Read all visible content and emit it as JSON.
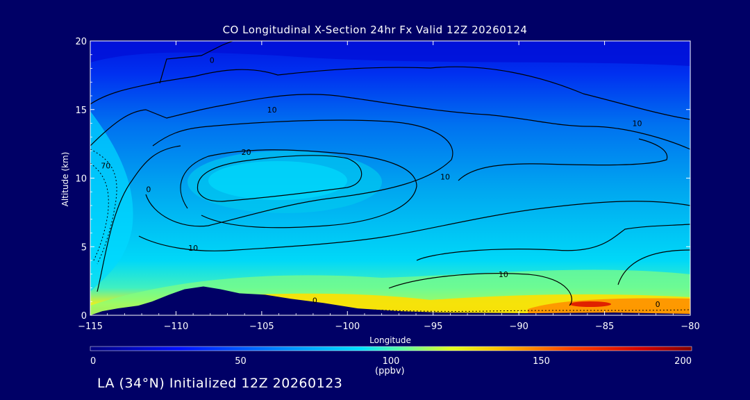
{
  "chart_data": {
    "type": "heatmap",
    "title": "CO Longitudinal X-Section 24hr  Fx Valid 12Z 20260124",
    "xlabel": "Longitude",
    "ylabel": "Altitude (km)",
    "xlim": [
      -115,
      -80
    ],
    "ylim": [
      0,
      20
    ],
    "x_ticks": [
      -115,
      -110,
      -105,
      -100,
      -95,
      -90,
      -85,
      -80
    ],
    "x_tick_labels": [
      "−115",
      "−110",
      "−105",
      "−100",
      "−95",
      "−90",
      "−85",
      "−80"
    ],
    "y_ticks": [
      0,
      5,
      10,
      15,
      20
    ],
    "y_tick_labels": [
      "0",
      "5",
      "10",
      "15",
      "20"
    ],
    "colorbar": {
      "label": "(ppbv)",
      "range": [
        0,
        200
      ],
      "ticks": [
        0,
        50,
        100,
        150,
        200
      ],
      "tick_labels": [
        "0",
        "50",
        "100",
        "150",
        "200"
      ]
    },
    "contour_labels": [
      {
        "text": "0",
        "lon": -107.9,
        "alt": 18.6
      },
      {
        "text": "10",
        "lon": -104.4,
        "alt": 15.0
      },
      {
        "text": "20",
        "lon": -105.9,
        "alt": 11.9
      },
      {
        "text": "70",
        "lon": -114.1,
        "alt": 10.9
      },
      {
        "text": "0",
        "lon": -111.6,
        "alt": 9.2
      },
      {
        "text": "10",
        "lon": -94.3,
        "alt": 10.1
      },
      {
        "text": "10",
        "lon": -83.1,
        "alt": 14.0
      },
      {
        "text": "10",
        "lon": -109.0,
        "alt": 4.9
      },
      {
        "text": "10",
        "lon": -90.9,
        "alt": 3.0
      },
      {
        "text": "0",
        "lon": -101.9,
        "alt": 1.1
      },
      {
        "text": "0",
        "lon": -81.9,
        "alt": 0.8
      }
    ],
    "terrain": [
      {
        "lon": -115.0,
        "alt": 0.0
      },
      {
        "lon": -114.3,
        "alt": 0.3
      },
      {
        "lon": -113.4,
        "alt": 0.5
      },
      {
        "lon": -112.2,
        "alt": 0.7
      },
      {
        "lon": -111.4,
        "alt": 1.0
      },
      {
        "lon": -110.4,
        "alt": 1.5
      },
      {
        "lon": -109.5,
        "alt": 1.9
      },
      {
        "lon": -108.4,
        "alt": 2.1
      },
      {
        "lon": -107.4,
        "alt": 1.9
      },
      {
        "lon": -106.3,
        "alt": 1.6
      },
      {
        "lon": -104.8,
        "alt": 1.5
      },
      {
        "lon": -103.3,
        "alt": 1.2
      },
      {
        "lon": -101.4,
        "alt": 0.9
      },
      {
        "lon": -99.4,
        "alt": 0.5
      },
      {
        "lon": -96.9,
        "alt": 0.3
      },
      {
        "lon": -94.4,
        "alt": 0.2
      },
      {
        "lon": -89.4,
        "alt": 0.15
      },
      {
        "lon": -84.4,
        "alt": 0.2
      },
      {
        "lon": -80.0,
        "alt": 0.1
      }
    ]
  },
  "footer": {
    "initialized": "LA (34°N) Initialized 12Z 20260123"
  }
}
